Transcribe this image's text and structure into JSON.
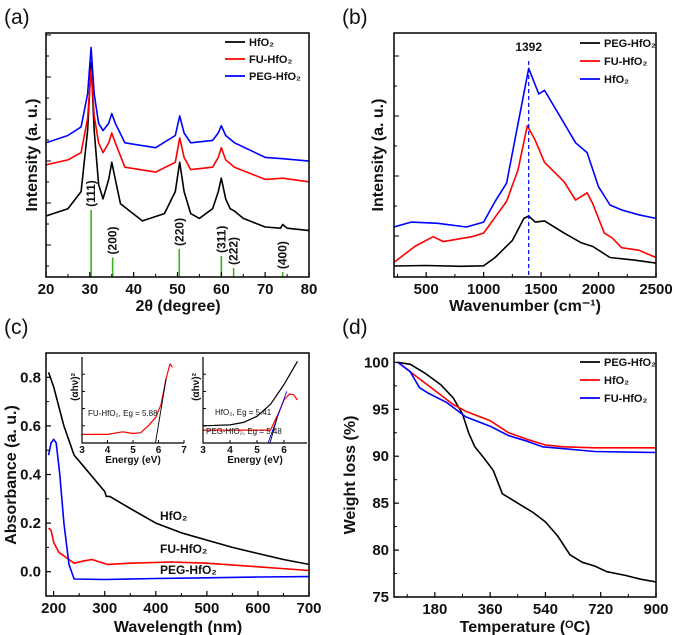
{
  "chart_data": [
    {
      "panel_label": "(a)",
      "type": "line",
      "title": "",
      "xlabel": "2θ (degree)",
      "ylabel": "Intensity (a. u.)",
      "xlim": [
        20,
        80
      ],
      "ylim": [
        0,
        100
      ],
      "xticks": [
        "20",
        "30",
        "40",
        "50",
        "60",
        "70",
        "80"
      ],
      "yticks": [],
      "legend_position": "top-right",
      "series": [
        {
          "name": "HfO₂",
          "color": "#000000",
          "x": [
            20,
            25,
            28,
            29.5,
            30.3,
            31,
            32,
            33,
            34.3,
            35,
            35.8,
            37,
            42,
            47,
            49.5,
            50.5,
            51.5,
            53,
            55,
            58,
            59.3,
            60,
            61,
            62,
            63,
            65,
            70,
            73.5,
            74,
            75,
            80
          ],
          "y": [
            25,
            28,
            35,
            60,
            88,
            60,
            38,
            32,
            40,
            47,
            40,
            30,
            23,
            26,
            35,
            47,
            35,
            26,
            24,
            28,
            35,
            40.5,
            32,
            28,
            27,
            24,
            20.5,
            20,
            21.5,
            20,
            19
          ]
        },
        {
          "name": "FU-HfO₂",
          "color": "#ff0000",
          "x": [
            20,
            25,
            28,
            29.5,
            30.3,
            31,
            32,
            33,
            34.3,
            35,
            35.8,
            38,
            45,
            49.5,
            50.5,
            51.5,
            53,
            58,
            59.3,
            60,
            61,
            63,
            70,
            74,
            80
          ],
          "y": [
            46,
            48,
            51,
            65,
            85,
            66,
            55,
            51,
            55,
            59,
            55,
            45,
            43,
            47,
            57,
            49,
            44,
            45,
            49,
            53,
            48,
            45,
            40,
            40.5,
            39
          ]
        },
        {
          "name": "PEG-HfO₂",
          "color": "#0000ff",
          "x": [
            20,
            25,
            28,
            29.5,
            30.3,
            31,
            32,
            33,
            34.3,
            35,
            35.8,
            38,
            45,
            49.5,
            50.5,
            51.5,
            53,
            58,
            59.3,
            60,
            61,
            63,
            70,
            74,
            80
          ],
          "y": [
            55,
            58,
            61.5,
            75,
            94,
            75,
            63,
            60,
            63,
            67,
            63,
            55,
            53,
            58,
            66,
            59,
            55,
            56,
            59,
            62,
            58,
            55,
            49,
            48.5,
            47.5
          ]
        }
      ],
      "reference_peaks": {
        "color": "#3cb01e",
        "x": [
          30.3,
          35.2,
          50.4,
          60.0,
          62.8,
          74.0
        ],
        "height": [
          27.5,
          8,
          11.5,
          8.6,
          3.7,
          2
        ],
        "labels": [
          "(111)",
          "(200)",
          "(220)",
          "(311)",
          "(222)",
          "(400)"
        ]
      }
    },
    {
      "panel_label": "(b)",
      "type": "line",
      "title": "",
      "xlabel": "Wavenumber (cm⁻¹)",
      "ylabel": "Intensity (a. u.)",
      "xlim": [
        220,
        2500
      ],
      "ylim": [
        0,
        100
      ],
      "xticks": [
        "500",
        "1000",
        "1500",
        "2000",
        "2500"
      ],
      "yticks": [],
      "legend_position": "top-right",
      "series": [
        {
          "name": "PEG-HfO₂",
          "color": "#000000",
          "x": [
            220,
            500,
            800,
            1000,
            1100,
            1250,
            1350,
            1392,
            1450,
            1530,
            1700,
            1850,
            1950,
            2100,
            2300,
            2500
          ],
          "y": [
            4.5,
            4.7,
            4.4,
            4.6,
            8,
            15,
            24,
            25,
            22.5,
            23,
            18,
            14,
            12.5,
            8,
            7,
            5.7
          ]
        },
        {
          "name": "FU-HfO₂",
          "color": "#ff0000",
          "x": [
            220,
            400,
            560,
            650,
            900,
            1000,
            1100,
            1200,
            1300,
            1380,
            1450,
            1530,
            1700,
            1800,
            1900,
            1950,
            2050,
            2120,
            2200,
            2350,
            2500
          ],
          "y": [
            6,
            12.5,
            16.5,
            14.5,
            16.5,
            18,
            24.5,
            31,
            44,
            62,
            56,
            47,
            39,
            31.5,
            34.5,
            30,
            18,
            16,
            12,
            11,
            8
          ]
        },
        {
          "name": "HfO₂",
          "color": "#0000ff",
          "x": [
            220,
            370,
            600,
            850,
            1000,
            1100,
            1200,
            1300,
            1392,
            1480,
            1530,
            1650,
            1800,
            1900,
            2000,
            2100,
            2200,
            2350,
            2500
          ],
          "y": [
            20.5,
            22.5,
            22,
            20.5,
            22.5,
            31,
            38.5,
            63,
            85.5,
            75,
            76.5,
            67,
            55,
            51,
            37,
            29.5,
            27.5,
            25.5,
            24
          ]
        }
      ],
      "annotations": [
        {
          "text": "1392",
          "x": 1392,
          "style": "dashed-vertical",
          "color": "#0000ff"
        }
      ]
    },
    {
      "panel_label": "(c)",
      "type": "line",
      "title": "",
      "xlabel": "Wavelength (nm)",
      "ylabel": "Absorbance (a. u.)",
      "xlim": [
        185,
        700
      ],
      "ylim": [
        -0.1,
        0.9
      ],
      "xticks": [
        "200",
        "300",
        "400",
        "500",
        "600",
        "700"
      ],
      "yticks": [
        "0.0",
        "0.2",
        "0.4",
        "0.6",
        "0.8"
      ],
      "series": [
        {
          "name": "HfO₂",
          "color": "#000000",
          "x": [
            190,
            200,
            220,
            240,
            260,
            280,
            300,
            303,
            310,
            350,
            400,
            450,
            500,
            550,
            600,
            650,
            700
          ],
          "y": [
            0.82,
            0.76,
            0.6,
            0.48,
            0.43,
            0.38,
            0.33,
            0.31,
            0.31,
            0.26,
            0.2,
            0.16,
            0.13,
            0.1,
            0.075,
            0.05,
            0.03
          ]
        },
        {
          "name": "FU-HfO₂",
          "color": "#ff0000",
          "x": [
            190,
            195,
            200,
            210,
            230,
            240,
            260,
            275,
            290,
            305,
            350,
            430,
            500,
            600,
            700
          ],
          "y": [
            0.18,
            0.17,
            0.12,
            0.08,
            0.05,
            0.035,
            0.045,
            0.05,
            0.04,
            0.03,
            0.035,
            0.04,
            0.035,
            0.02,
            0.005
          ]
        },
        {
          "name": "PEG-HfO₂",
          "color": "#0000ff",
          "x": [
            190,
            195,
            200,
            205,
            212,
            220,
            230,
            240,
            300,
            400,
            500,
            600,
            700
          ],
          "y": [
            0.48,
            0.53,
            0.545,
            0.53,
            0.4,
            0.2,
            0.03,
            -0.03,
            -0.032,
            -0.028,
            -0.025,
            -0.022,
            -0.02
          ]
        }
      ],
      "curve_labels": [
        "HfO₂",
        "FU-HfO₂",
        "PEG-HfO₂"
      ],
      "insets": [
        {
          "xlabel": "Energy (eV)",
          "ylabel": "(αhν)²",
          "xlim": [
            3,
            7
          ],
          "ylim": [
            0,
            100
          ],
          "xticks": [
            "3",
            "4",
            "5",
            "6",
            "7"
          ],
          "series": [
            {
              "name": "FU-HfO₂",
              "color": "#ff0000",
              "x": [
                3,
                4,
                4.6,
                5,
                5.3,
                5.6,
                5.9,
                6.1,
                6.3,
                6.45,
                6.55
              ],
              "y": [
                10,
                10,
                13,
                11,
                12,
                20,
                30,
                45,
                75,
                92,
                88
              ]
            }
          ],
          "fit_lines": [
            {
              "color": "#000000",
              "x": [
                6.3,
                5.88
              ],
              "y": [
                75,
                0
              ]
            }
          ],
          "annotations": [
            {
              "text": "FU-HfO₂, Eg = 5.88"
            }
          ]
        },
        {
          "xlabel": "Energy (eV)",
          "ylabel": "(αhν)²",
          "xlim": [
            3,
            6.85
          ],
          "ylim": [
            0,
            100
          ],
          "xticks": [
            "3",
            "4",
            "5",
            "6"
          ],
          "series": [
            {
              "name": "HfO₂",
              "color": "#000000",
              "x": [
                3,
                4,
                4.5,
                5,
                5.5,
                6,
                6.5
              ],
              "y": [
                20,
                21,
                24,
                31,
                45,
                68,
                95
              ]
            },
            {
              "name": "PEG-HfO₂",
              "color": "#ff0000",
              "x": [
                3,
                5.5,
                5.8,
                6.0,
                6.2,
                6.35,
                6.5
              ],
              "y": [
                15,
                15,
                35,
                50,
                57,
                56,
                50
              ]
            }
          ],
          "fit_lines": [
            {
              "color": "#0000ff",
              "x": [
                5.41,
                6.1
              ],
              "y": [
                0,
                60
              ]
            },
            {
              "color": "#000000",
              "x": [
                5.75,
                5.48
              ],
              "y": [
                30,
                0
              ]
            }
          ],
          "annotations": [
            {
              "text": "HfO₂, Eg = 5.41"
            },
            {
              "text": "PEG-HfO₂, Eg = 5.48"
            }
          ]
        }
      ]
    },
    {
      "panel_label": "(d)",
      "type": "line",
      "title": "",
      "xlabel": "Temperature (ᴼC)",
      "ylabel": "Weight loss (%)",
      "xlim": [
        47,
        900
      ],
      "ylim": [
        75,
        101
      ],
      "xticks": [
        "180",
        "360",
        "540",
        "720",
        "900"
      ],
      "yticks": [
        "75",
        "80",
        "85",
        "90",
        "95",
        "100"
      ],
      "legend_position": "top-right",
      "series": [
        {
          "name": "PEG-HfO₂",
          "color": "#000000",
          "x": [
            60,
            100,
            150,
            200,
            240,
            270,
            290,
            310,
            340,
            370,
            400,
            450,
            500,
            540,
            580,
            620,
            660,
            700,
            740,
            800,
            850,
            900
          ],
          "y": [
            100,
            99.8,
            98.8,
            97.6,
            96.2,
            94.5,
            92.5,
            91,
            89.8,
            88.5,
            86,
            85,
            84,
            83,
            81.5,
            79.5,
            78.7,
            78.3,
            77.7,
            77.3,
            76.9,
            76.6
          ]
        },
        {
          "name": "HfO₂",
          "color": "#ff0000",
          "x": [
            60,
            120,
            180,
            240,
            280,
            360,
            420,
            480,
            540,
            600,
            700,
            900
          ],
          "y": [
            100,
            98.5,
            97,
            95.5,
            94.8,
            93.8,
            92.5,
            91.8,
            91.2,
            91,
            90.9,
            90.9
          ]
        },
        {
          "name": "FU-HfO₂",
          "color": "#0000ff",
          "x": [
            60,
            100,
            130,
            160,
            220,
            280,
            360,
            420,
            480,
            530,
            600,
            700,
            900
          ],
          "y": [
            100,
            99,
            97.3,
            96.7,
            95.7,
            94.2,
            93.2,
            92.2,
            91.6,
            91,
            90.8,
            90.5,
            90.4
          ]
        }
      ]
    }
  ]
}
